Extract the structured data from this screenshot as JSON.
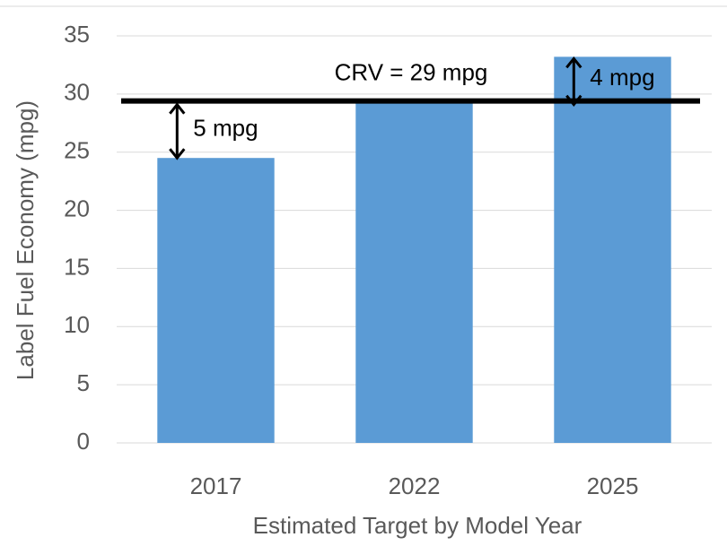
{
  "chart_data": {
    "type": "bar",
    "xlabel": "Estimated Target by Model Year",
    "ylabel": "Label Fuel Economy (mpg)",
    "categories": [
      "2017",
      "2022",
      "2025"
    ],
    "values": [
      24.5,
      29.4,
      33.2
    ],
    "color": "#5b9bd5",
    "ylim": [
      0,
      35
    ],
    "yticks": [
      0,
      5,
      10,
      15,
      20,
      25,
      30,
      35
    ],
    "grid": true,
    "reference_line": {
      "value": 29.4,
      "label": "CRV = 29 mpg",
      "color": "#000000"
    },
    "annotations": [
      {
        "text": "5 mpg",
        "category": 0
      },
      {
        "text": "4 mpg",
        "category": 2
      }
    ]
  }
}
